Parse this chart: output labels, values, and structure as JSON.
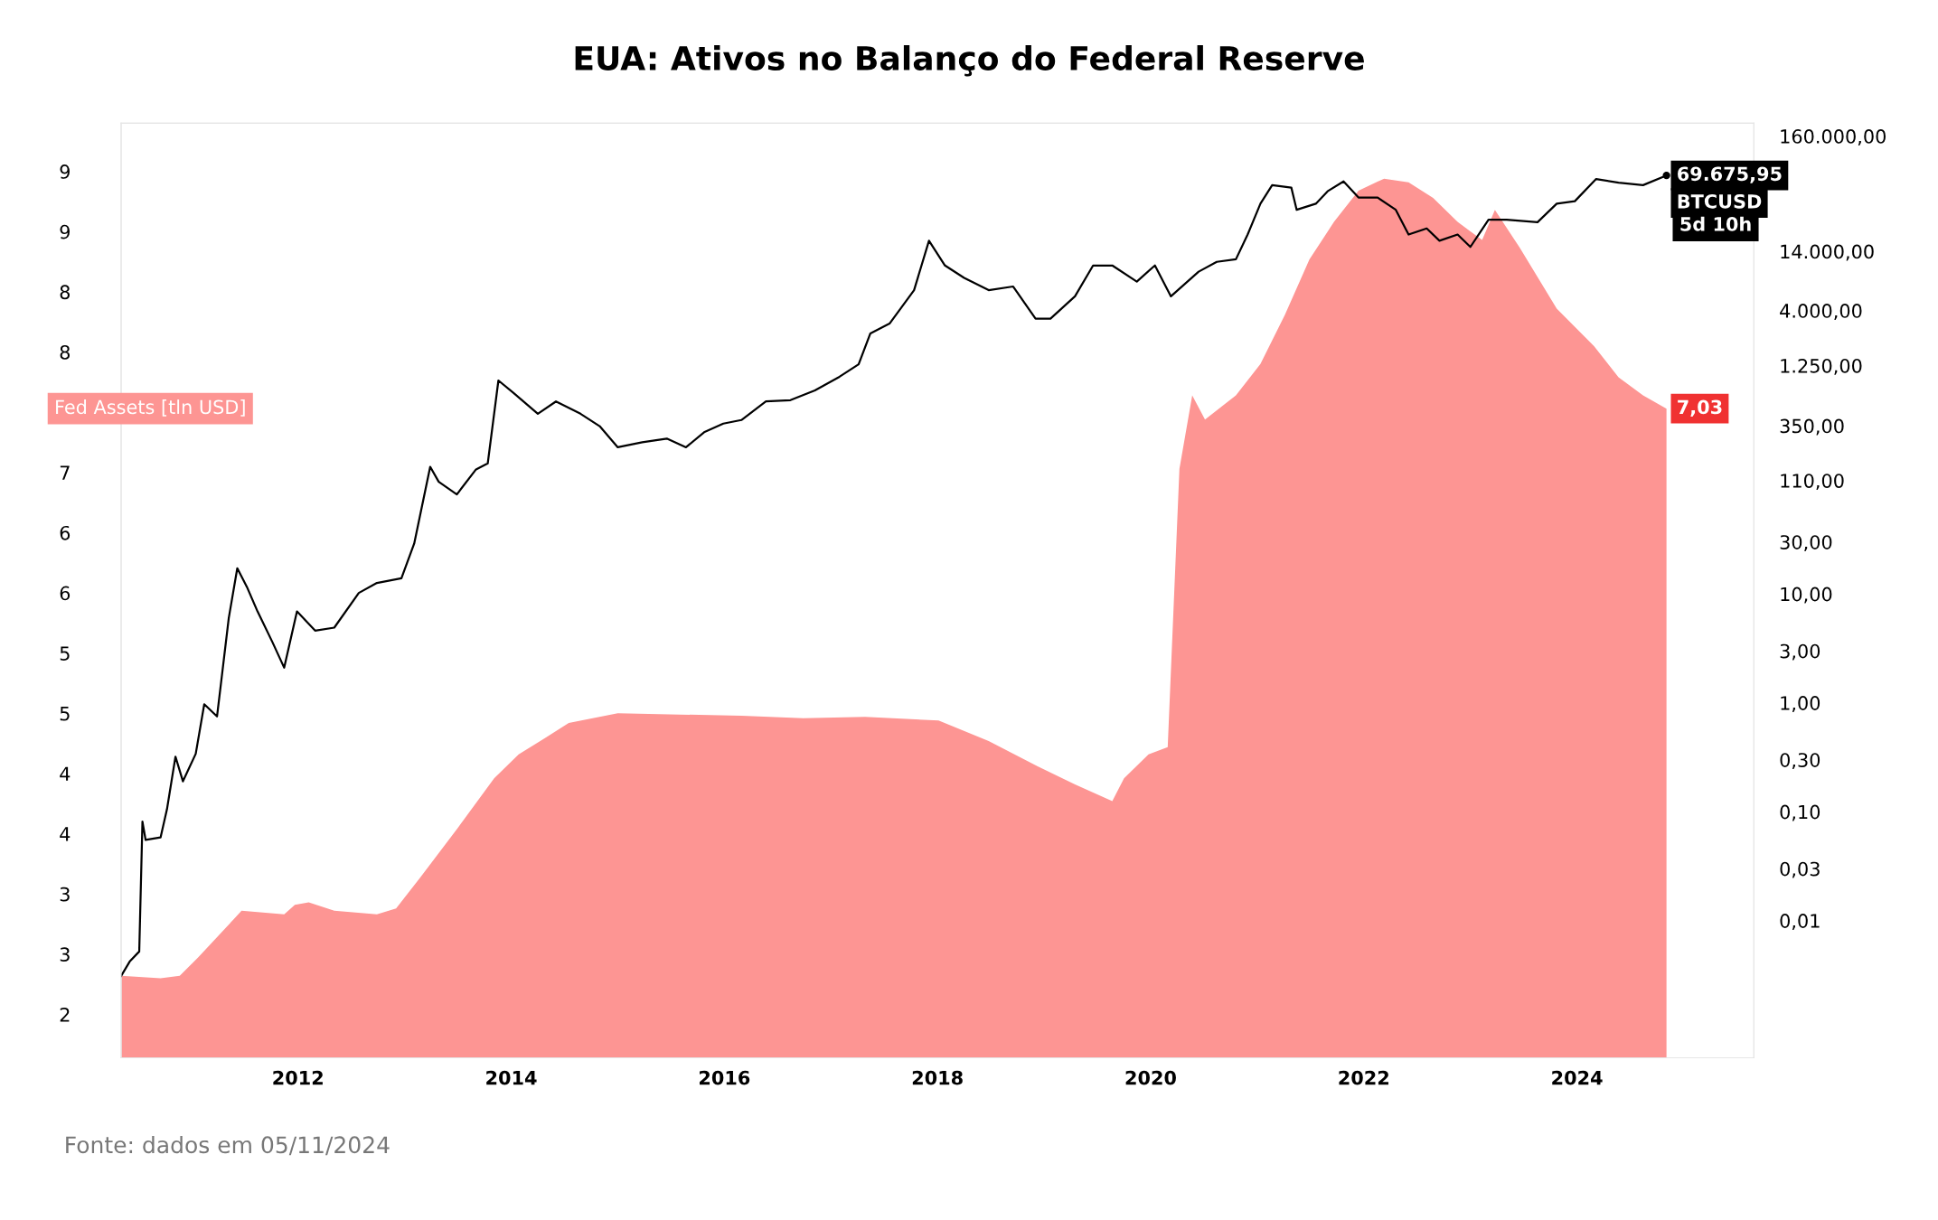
{
  "chart_data": {
    "type": "area",
    "title": "EUA: Ativos no Balanço do Federal Reserve",
    "annotations": [
      "5d 10h",
      "Fonte: dados em 05/11/2024"
    ],
    "log": "y2",
    "grid": false,
    "legend": false,
    "xlim": [
      2010.34,
      2025.66
    ],
    "xticks": [
      2012,
      2014,
      2016,
      2018,
      2020,
      2022,
      2024
    ],
    "ylim": [
      1.64,
      9.4
    ],
    "yticks": [
      {
        "value": 2.0,
        "label": "2"
      },
      {
        "value": 2.5,
        "label": "3"
      },
      {
        "value": 3.0,
        "label": "3"
      },
      {
        "value": 3.5,
        "label": "4"
      },
      {
        "value": 4.0,
        "label": "4"
      },
      {
        "value": 4.5,
        "label": "5"
      },
      {
        "value": 5.0,
        "label": "5"
      },
      {
        "value": 5.5,
        "label": "6"
      },
      {
        "value": 6.0,
        "label": "6"
      },
      {
        "value": 6.5,
        "label": "7"
      },
      {
        "value": 7.5,
        "label": "8"
      },
      {
        "value": 8.0,
        "label": "8"
      },
      {
        "value": 8.5,
        "label": "9"
      },
      {
        "value": 9.0,
        "label": "9"
      }
    ],
    "y2lim": [
      0.00055,
      210000
    ],
    "y2ticks": [
      {
        "value": 0.01,
        "label": "0,01"
      },
      {
        "value": 0.03,
        "label": "0,03"
      },
      {
        "value": 0.1,
        "label": "0,10"
      },
      {
        "value": 0.3,
        "label": "0,30"
      },
      {
        "value": 1,
        "label": "1,00"
      },
      {
        "value": 3,
        "label": "3,00"
      },
      {
        "value": 10,
        "label": "10,00"
      },
      {
        "value": 30,
        "label": "30,00"
      },
      {
        "value": 110,
        "label": "110,00"
      },
      {
        "value": 350,
        "label": "350,00"
      },
      {
        "value": 1250,
        "label": "1.250,00"
      },
      {
        "value": 4000,
        "label": "4.000,00"
      },
      {
        "value": 14000,
        "label": "14.000,00"
      },
      {
        "value": 160000,
        "label": "160.000,00"
      }
    ],
    "series": [
      {
        "name": "Fed Assets [tln USD]",
        "color": "#fd9593",
        "x": [
          2010.34,
          2010.71,
          2010.89,
          2011.06,
          2011.47,
          2011.87,
          2011.97,
          2012.1,
          2012.34,
          2012.74,
          2012.92,
          2013.15,
          2013.5,
          2013.84,
          2014.07,
          2014.31,
          2014.54,
          2015.0,
          2015.58,
          2016.16,
          2016.74,
          2017.32,
          2018.01,
          2018.48,
          2018.94,
          2019.29,
          2019.64,
          2019.75,
          2019.98,
          2020.16,
          2020.27,
          2020.39,
          2020.51,
          2020.8,
          2021.03,
          2021.26,
          2021.49,
          2021.72,
          2021.95,
          2022.19,
          2022.42,
          2022.65,
          2022.88,
          2023.11,
          2023.23,
          2023.46,
          2023.81,
          2024.16,
          2024.39,
          2024.62,
          2024.84
        ],
        "values": [
          2.32,
          2.3,
          2.32,
          2.47,
          2.86,
          2.83,
          2.91,
          2.93,
          2.86,
          2.83,
          2.88,
          3.14,
          3.55,
          3.96,
          4.16,
          4.29,
          4.42,
          4.5,
          4.49,
          4.48,
          4.46,
          4.47,
          4.44,
          4.27,
          4.06,
          3.91,
          3.77,
          3.96,
          4.16,
          4.22,
          6.53,
          7.14,
          6.94,
          7.14,
          7.4,
          7.81,
          8.27,
          8.58,
          8.84,
          8.94,
          8.91,
          8.78,
          8.58,
          8.43,
          8.68,
          8.37,
          7.86,
          7.55,
          7.29,
          7.14,
          7.03
        ],
        "value_labels": [
          null,
          null,
          null,
          null,
          null,
          null,
          null,
          null,
          null,
          null,
          null,
          null,
          null,
          null,
          null,
          null,
          null,
          null,
          null,
          null,
          null,
          null,
          null,
          null,
          null,
          null,
          null,
          null,
          null,
          null,
          null,
          null,
          null,
          null,
          null,
          null,
          null,
          null,
          null,
          null,
          null,
          null,
          null,
          null,
          null,
          null,
          null,
          null,
          null,
          null,
          "7,03"
        ]
      },
      {
        "name": "BTCUSD",
        "type": "line",
        "axis": "y2",
        "color": "#000000",
        "x": [
          2010.34,
          2010.42,
          2010.51,
          2010.54,
          2010.57,
          2010.71,
          2010.77,
          2010.85,
          2010.92,
          2011.04,
          2011.12,
          2011.24,
          2011.35,
          2011.43,
          2011.52,
          2011.62,
          2011.76,
          2011.87,
          2011.99,
          2012.16,
          2012.34,
          2012.57,
          2012.74,
          2012.97,
          2013.09,
          2013.24,
          2013.32,
          2013.49,
          2013.67,
          2013.78,
          2013.88,
          2014.02,
          2014.25,
          2014.42,
          2014.65,
          2014.83,
          2015.0,
          2015.23,
          2015.46,
          2015.64,
          2015.81,
          2015.99,
          2016.16,
          2016.39,
          2016.62,
          2016.85,
          2017.08,
          2017.26,
          2017.37,
          2017.55,
          2017.78,
          2017.92,
          2018.07,
          2018.25,
          2018.48,
          2018.71,
          2018.92,
          2019.06,
          2019.29,
          2019.46,
          2019.64,
          2019.87,
          2020.04,
          2020.19,
          2020.45,
          2020.62,
          2020.8,
          2020.91,
          2021.03,
          2021.14,
          2021.32,
          2021.37,
          2021.55,
          2021.66,
          2021.81,
          2021.95,
          2022.13,
          2022.3,
          2022.42,
          2022.59,
          2022.71,
          2022.88,
          2023.0,
          2023.17,
          2023.34,
          2023.63,
          2023.81,
          2023.98,
          2024.18,
          2024.39,
          2024.62,
          2024.84
        ],
        "values": [
          0.0031,
          0.0042,
          0.0052,
          0.081,
          0.055,
          0.058,
          0.105,
          0.32,
          0.19,
          0.34,
          0.97,
          0.75,
          6.0,
          17.2,
          11.6,
          6.9,
          3.6,
          2.1,
          6.9,
          4.6,
          4.9,
          10.2,
          12.6,
          13.9,
          29,
          147,
          107,
          82,
          139,
          158,
          912,
          703,
          451,
          585,
          451,
          347,
          222,
          247,
          267,
          222,
          305,
          366,
          395,
          585,
          601,
          740,
          986,
          1282,
          2466,
          3034,
          6152,
          17500,
          10370,
          7980,
          6150,
          6650,
          3373,
          3370,
          5400,
          10370,
          10370,
          7380,
          10370,
          5400,
          9100,
          11200,
          11830,
          19950,
          38300,
          56700,
          53800,
          33650,
          38300,
          49800,
          61400,
          43600,
          43600,
          33650,
          19950,
          22700,
          17500,
          19950,
          15350,
          27300,
          27300,
          25900,
          38300,
          40400,
          64600,
          59700,
          56700,
          69675.95
        ],
        "value_labels": [
          null,
          null,
          null,
          null,
          null,
          null,
          null,
          null,
          null,
          null,
          null,
          null,
          null,
          null,
          null,
          null,
          null,
          null,
          null,
          null,
          null,
          null,
          null,
          null,
          null,
          null,
          null,
          null,
          null,
          null,
          null,
          null,
          null,
          null,
          null,
          null,
          null,
          null,
          null,
          null,
          null,
          null,
          null,
          null,
          null,
          null,
          null,
          null,
          null,
          null,
          null,
          null,
          null,
          null,
          null,
          null,
          null,
          null,
          null,
          null,
          null,
          null,
          null,
          null,
          null,
          null,
          null,
          null,
          null,
          null,
          null,
          null,
          null,
          null,
          null,
          null,
          null,
          null,
          null,
          null,
          null,
          null,
          null,
          null,
          null,
          null,
          null,
          null,
          null,
          null,
          null,
          "69.675,95"
        ]
      }
    ]
  }
}
